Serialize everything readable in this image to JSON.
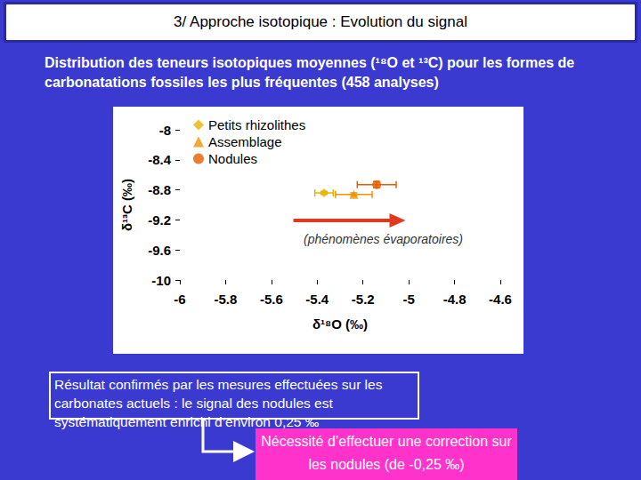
{
  "slide": {
    "title": "3/ Approche isotopique : Evolution du signal",
    "subtitle": "Distribution des teneurs isotopiques moyennes (¹⁸O et ¹³C) pour les formes de carbonatations fossiles les plus fréquentes (458 analyses)",
    "result": "Résultat confirmés par les mesures effectuées sur les carbonates actuels : le signal des nodules est systématiquement enrichi d’environ 0,25 ‰",
    "conclusion": "Nécessité d’effectuer une correction sur les nodules (de -0,25 ‰)"
  },
  "chart_data": {
    "type": "scatter",
    "x_label": "δ¹⁸O (‰)",
    "y_label": "δ¹³C (‰)",
    "xlim": [
      -6,
      -4.6
    ],
    "xticks": [
      -6,
      -5.8,
      -5.6,
      -5.4,
      -5.2,
      -5,
      -4.8,
      -4.6
    ],
    "ylim": [
      -10,
      -8
    ],
    "yticks": [
      -10,
      -9.6,
      -9.2,
      -8.8,
      -8.4,
      -8
    ],
    "grid": false,
    "legend": "upper left",
    "annotation": "(phénomènes évaporatoires)",
    "series": [
      {
        "name": "Petits rhizolithes",
        "color": "#e8b400",
        "marker": "diamond",
        "x": [
          -5.37
        ],
        "values": [
          -8.84
        ],
        "x_error": [
          0.04
        ],
        "y_error": [
          0.02
        ]
      },
      {
        "name": "Assemblage",
        "color": "#ee9400",
        "marker": "triangle",
        "x": [
          -5.24
        ],
        "values": [
          -8.86
        ],
        "x_error": [
          0.08
        ],
        "y_error": [
          0.02
        ]
      },
      {
        "name": "Nodules",
        "color": "#e65c00",
        "marker": "circle",
        "x": [
          -5.14
        ],
        "values": [
          -8.73
        ],
        "x_error": [
          0.085
        ],
        "y_error": [
          0.04
        ]
      }
    ]
  }
}
